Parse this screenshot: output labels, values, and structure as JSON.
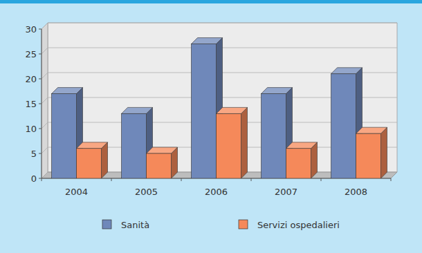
{
  "chart_data": {
    "type": "bar",
    "categories": [
      "2004",
      "2005",
      "2006",
      "2007",
      "2008"
    ],
    "series": [
      {
        "name": "Sanità",
        "color": "#6f88ba",
        "values": [
          17,
          13,
          27,
          17,
          21
        ]
      },
      {
        "name": "Servizi ospedalieri",
        "color": "#f5895a",
        "values": [
          6,
          5,
          13,
          6,
          9
        ]
      }
    ],
    "ylim": [
      0,
      30
    ],
    "yticks": [
      0,
      5,
      10,
      15,
      20,
      25,
      30
    ],
    "grid": true,
    "legend": "bottom"
  }
}
